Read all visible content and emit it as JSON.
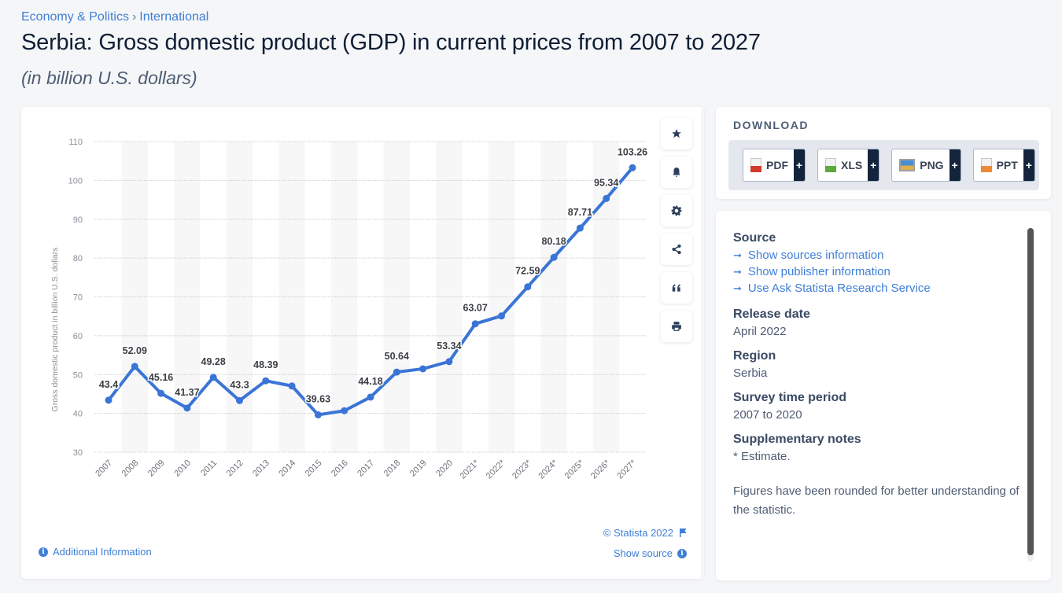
{
  "breadcrumb": {
    "items": [
      "Economy & Politics",
      "International"
    ],
    "separator": "›"
  },
  "header": {
    "title": "Serbia: Gross domestic product (GDP) in current prices from 2007 to 2027",
    "subtitle": "(in billion U.S. dollars)"
  },
  "colors": {
    "accent": "#3a75d6",
    "link": "#3f7fd6",
    "dark": "#14243c"
  },
  "chart_data": {
    "type": "line",
    "title": "Serbia: Gross domestic product (GDP) in current prices from 2007 to 2027",
    "xlabel": "",
    "ylabel": "Gross domestic product in billion U.S. dollars",
    "categories": [
      "2007",
      "2008",
      "2009",
      "2010",
      "2011",
      "2012",
      "2013",
      "2014",
      "2015",
      "2016",
      "2017",
      "2018",
      "2019",
      "2020",
      "2021*",
      "2022*",
      "2023*",
      "2024*",
      "2025*",
      "2026*",
      "2027*"
    ],
    "series": [
      {
        "name": "GDP",
        "values": [
          43.4,
          52.09,
          45.16,
          41.37,
          49.28,
          43.3,
          48.39,
          47.06,
          39.63,
          40.69,
          44.18,
          50.64,
          51.48,
          53.34,
          63.07,
          65.1,
          72.59,
          80.18,
          87.71,
          95.34,
          103.26
        ],
        "labels": [
          "43.4",
          "52.09",
          "45.16",
          "41.37",
          "49.28",
          "43.3",
          "48.39",
          "",
          "39.63",
          "",
          "44.18",
          "50.64",
          "",
          "53.34",
          "63.07",
          "",
          "72.59",
          "80.18",
          "87.71",
          "95.34",
          "103.26"
        ]
      }
    ],
    "yticks": [
      30,
      40,
      50,
      60,
      70,
      80,
      90,
      100,
      110
    ],
    "ylim": [
      30,
      110
    ],
    "grid": true,
    "legend": "none"
  },
  "tools": [
    {
      "name": "favorite",
      "icon": "star-icon"
    },
    {
      "name": "notification",
      "icon": "bell-icon"
    },
    {
      "name": "settings",
      "icon": "gear-icon"
    },
    {
      "name": "share",
      "icon": "share-icon"
    },
    {
      "name": "cite",
      "icon": "quote-icon"
    },
    {
      "name": "print",
      "icon": "print-icon"
    }
  ],
  "chart_footer": {
    "additional_info": "Additional Information",
    "copyright": "© Statista 2022",
    "show_source": "Show source"
  },
  "download": {
    "title": "DOWNLOAD",
    "buttons": [
      {
        "label": "PDF",
        "plus": "+",
        "icon": "pdf-file-icon",
        "color": "#d23a2a"
      },
      {
        "label": "XLS",
        "plus": "+",
        "icon": "xls-file-icon",
        "color": "#5aab3c"
      },
      {
        "label": "PNG",
        "plus": "+",
        "icon": "png-image-icon",
        "color": "#4a8fd4"
      },
      {
        "label": "PPT",
        "plus": "+",
        "icon": "ppt-file-icon",
        "color": "#ec8a34"
      }
    ]
  },
  "info": {
    "source_heading": "Source",
    "links": [
      "Show sources information",
      "Show publisher information",
      "Use Ask Statista Research Service"
    ],
    "release_heading": "Release date",
    "release_value": "April 2022",
    "region_heading": "Region",
    "region_value": "Serbia",
    "survey_heading": "Survey time period",
    "survey_value": "2007 to 2020",
    "notes_heading": "Supplementary notes",
    "notes_value": "* Estimate.",
    "rounding_note": "Figures have been rounded for better understanding of the statistic."
  }
}
